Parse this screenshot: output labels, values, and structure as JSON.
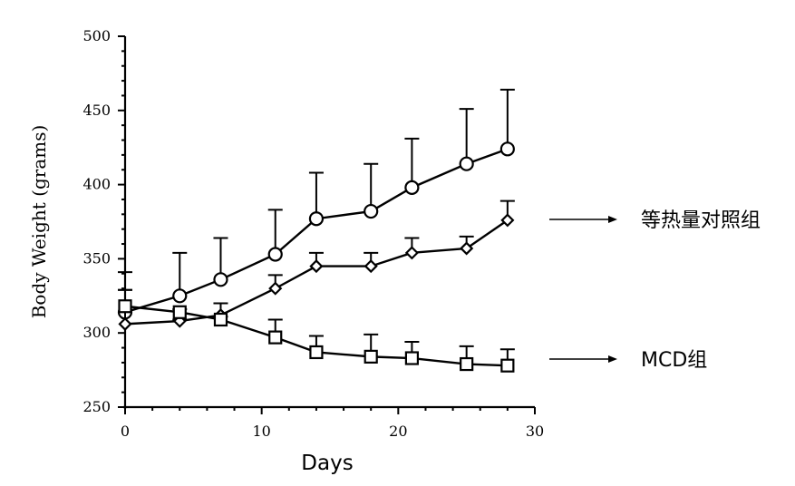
{
  "chart_data": {
    "type": "line",
    "xlabel": "Days",
    "ylabel": "Body Weight (grams)",
    "xlim": [
      0,
      30
    ],
    "ylim": [
      250,
      500
    ],
    "x_ticks": [
      "0",
      "10",
      "20",
      "30"
    ],
    "y_ticks": [
      "250",
      "300",
      "350",
      "400",
      "450",
      "500"
    ],
    "grid": false,
    "series": [
      {
        "marker": "circle",
        "x": [
          0,
          4,
          7,
          11,
          14,
          18,
          21,
          25,
          28
        ],
        "values": [
          314,
          325,
          336,
          353,
          377,
          382,
          398,
          414,
          424
        ],
        "error_upper": [
          329,
          354,
          364,
          383,
          408,
          414,
          431,
          451,
          464
        ]
      },
      {
        "marker": "diamond",
        "x": [
          0,
          4,
          7,
          11,
          14,
          18,
          21,
          25,
          28
        ],
        "values": [
          306,
          308,
          312,
          330,
          345,
          345,
          354,
          357,
          376
        ],
        "error_upper": [
          329,
          309,
          320,
          339,
          354,
          354,
          364,
          365,
          389
        ]
      },
      {
        "marker": "square",
        "x": [
          0,
          4,
          7,
          11,
          14,
          18,
          21,
          25,
          28
        ],
        "values": [
          318,
          314,
          309,
          297,
          287,
          284,
          283,
          279,
          278
        ],
        "error_upper": [
          341,
          316,
          311,
          309,
          298,
          299,
          294,
          291,
          289
        ]
      }
    ],
    "annotations": [
      {
        "text": "等热量对照组",
        "arrow": true
      },
      {
        "text": "MCD组",
        "arrow": true
      }
    ]
  }
}
